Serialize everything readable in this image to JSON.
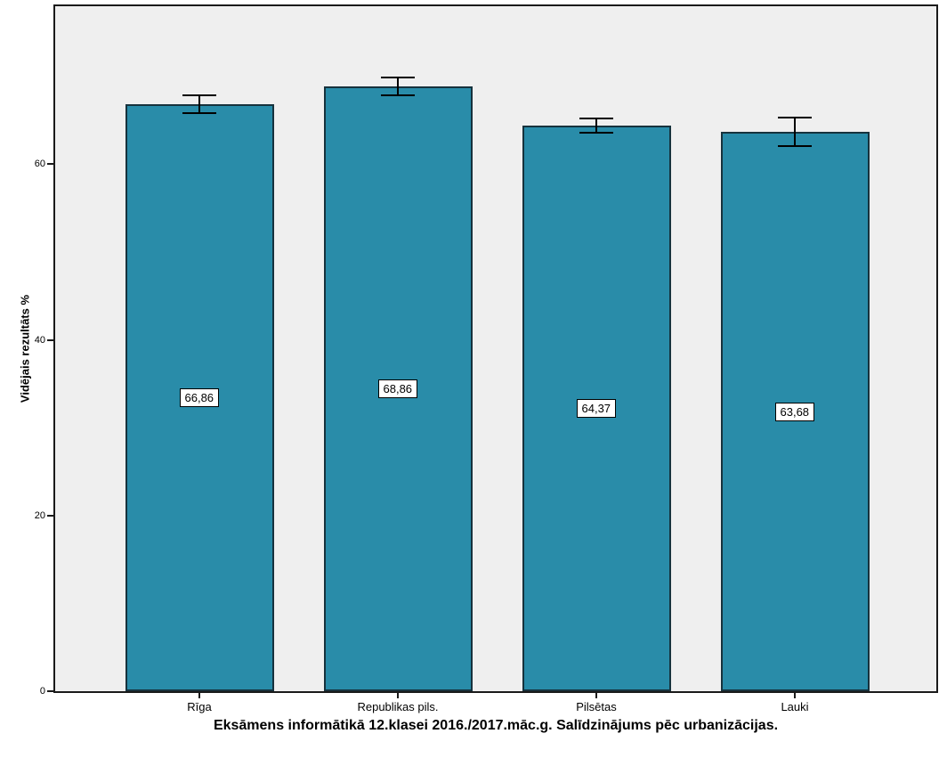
{
  "figure": {
    "background_color": "#ffffff",
    "plot_background_color": "#efefef",
    "frame_color": "#1a1a1a"
  },
  "chart_data": {
    "type": "bar",
    "title": "Eksāmens informātikā 12.klasei 2016./2017.māc.g. Salīdzinājums pēc urbanizācijas.",
    "ylabel": "Vidējais rezultāts %",
    "xlabel": "",
    "categories": [
      "Rīga",
      "Republikas pils.",
      "Pilsētas",
      "Lauki"
    ],
    "values": [
      66.86,
      68.86,
      64.37,
      63.68
    ],
    "value_labels": [
      "66,86",
      "68,86",
      "64,37",
      "63,68"
    ],
    "errors": [
      1.0,
      1.0,
      0.8,
      1.6
    ],
    "y_ticks": [
      0,
      20,
      40,
      60
    ],
    "ylim": [
      0,
      78
    ],
    "grid": false,
    "legend": null,
    "bar_color": "#298ca9",
    "bar_border_color": "#16323d",
    "error_bar_color": "#000000",
    "value_label_background": "#ffffff"
  }
}
